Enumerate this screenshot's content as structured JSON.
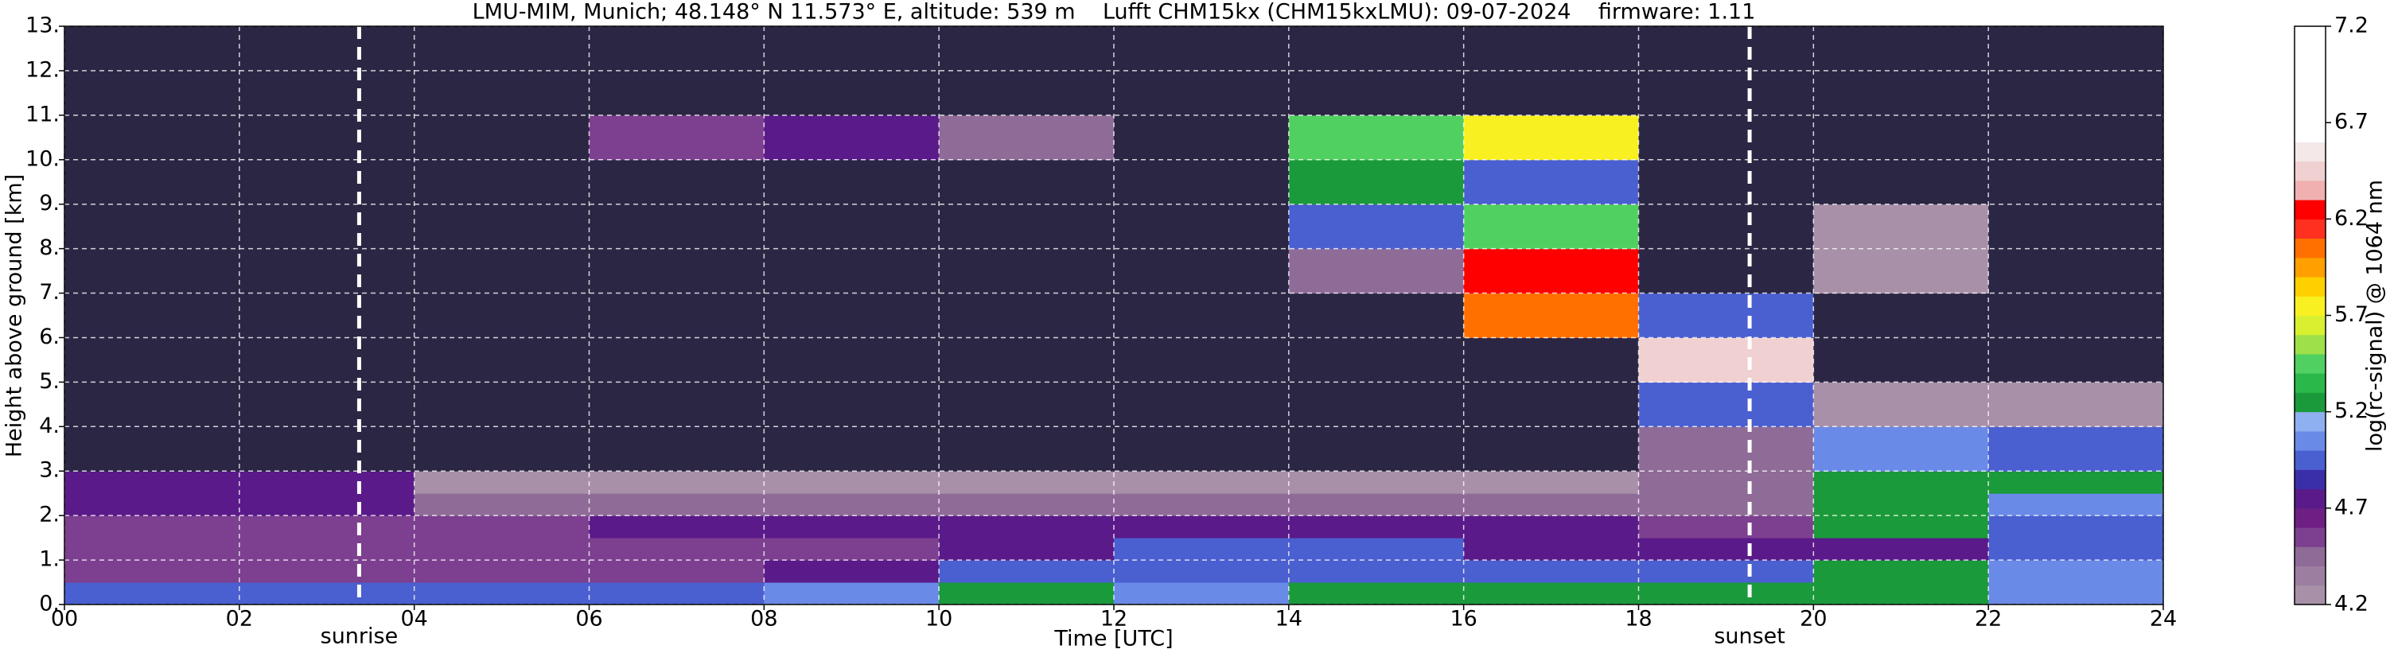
{
  "chart_data": {
    "type": "heatmap",
    "title": "LMU-MIM, Munich; 48.148° N 11.573° E, altitude: 539 m    Lufft CHM15kx (CHM15kxLMU): 09-07-2024    firmware: 1.11",
    "x_label": "Time [UTC]",
    "y_label": "Height above ground [km]",
    "colorbar_label": "log(rc-signal) @ 1064 nm",
    "xlim": [
      0,
      24
    ],
    "xticks": [
      {
        "value": 0,
        "label": "00"
      },
      {
        "value": 2,
        "label": "02"
      },
      {
        "value": 4,
        "label": "04"
      },
      {
        "value": 6,
        "label": "06"
      },
      {
        "value": 8,
        "label": "08"
      },
      10,
      12,
      14,
      16,
      18,
      20,
      22,
      24
    ],
    "ylim": [
      0,
      13
    ],
    "yticks": [
      {
        "value": 0,
        "label": "0."
      },
      {
        "value": 1,
        "label": "1."
      },
      {
        "value": 2,
        "label": "2."
      },
      {
        "value": 3,
        "label": "3."
      },
      {
        "value": 4,
        "label": "4."
      },
      {
        "value": 5,
        "label": "5."
      },
      {
        "value": 6,
        "label": "6."
      },
      {
        "value": 7,
        "label": "7."
      },
      {
        "value": 8,
        "label": "8."
      },
      {
        "value": 9,
        "label": "9."
      },
      {
        "value": 10,
        "label": "10."
      },
      {
        "value": 11,
        "label": "11."
      },
      {
        "value": 12,
        "label": "12."
      },
      {
        "value": 13,
        "label": "13."
      }
    ],
    "grid": true,
    "x_edges": [
      0,
      2,
      4,
      6,
      8,
      10,
      12,
      14,
      16,
      18,
      20,
      22,
      24
    ],
    "y_edges": [
      0,
      0.5,
      1,
      1.5,
      2,
      2.5,
      3,
      4,
      5,
      6,
      7,
      8,
      9,
      10,
      11,
      12,
      13
    ],
    "z": [
      [
        4.95,
        4.9,
        4.9,
        4.9,
        5.1,
        5.2,
        5.1,
        5.3,
        5.3,
        5.3,
        5.2,
        5.1
      ],
      [
        4.6,
        4.6,
        4.6,
        4.6,
        4.7,
        5.0,
        5.0,
        5.0,
        5.0,
        4.9,
        5.2,
        5.1
      ],
      [
        4.6,
        4.6,
        4.6,
        4.6,
        4.6,
        4.8,
        4.9,
        4.9,
        4.8,
        4.7,
        4.7,
        4.9
      ],
      [
        4.6,
        4.6,
        4.6,
        4.7,
        4.7,
        4.8,
        4.8,
        4.8,
        4.7,
        4.6,
        5.2,
        5.0
      ],
      [
        4.8,
        4.8,
        4.5,
        4.5,
        4.4,
        4.4,
        4.4,
        4.4,
        4.4,
        4.4,
        5.3,
        5.1
      ],
      [
        4.7,
        4.7,
        4.3,
        4.3,
        4.3,
        4.3,
        4.3,
        4.3,
        4.3,
        4.4,
        5.3,
        5.2
      ],
      [
        4.0,
        4.0,
        4.0,
        4.0,
        4.0,
        4.0,
        4.0,
        4.0,
        4.0,
        4.4,
        5.1,
        5.0
      ],
      [
        4.0,
        4.0,
        4.0,
        4.0,
        4.0,
        4.0,
        4.0,
        4.0,
        4.0,
        5.0,
        4.2,
        4.2
      ],
      [
        4.0,
        4.0,
        4.0,
        4.0,
        4.0,
        4.0,
        4.0,
        4.0,
        4.0,
        6.4,
        4.1,
        4.0
      ],
      [
        4.0,
        4.0,
        4.0,
        4.0,
        4.0,
        4.0,
        4.0,
        4.0,
        6.0,
        5.0,
        4.1,
        4.0
      ],
      [
        4.0,
        4.0,
        4.0,
        4.0,
        4.0,
        4.0,
        4.0,
        4.5,
        6.2,
        4.1,
        4.2,
        4.0
      ],
      [
        4.0,
        4.0,
        4.0,
        4.0,
        4.0,
        4.0,
        4.0,
        5.0,
        5.5,
        4.0,
        4.3,
        4.0
      ],
      [
        4.0,
        4.0,
        4.0,
        4.0,
        4.0,
        4.0,
        4.0,
        5.2,
        5.0,
        4.0,
        4.1,
        4.0
      ],
      [
        4.0,
        4.0,
        4.0,
        4.6,
        4.8,
        4.5,
        4.1,
        5.5,
        5.8,
        4.0,
        4.0,
        4.0
      ],
      [
        4.0,
        4.0,
        4.0,
        4.0,
        4.0,
        4.0,
        4.0,
        4.0,
        4.0,
        4.0,
        4.0,
        4.0
      ],
      [
        4.0,
        4.0,
        4.0,
        4.0,
        4.0,
        4.0,
        4.0,
        4.0,
        4.0,
        4.0,
        4.0,
        4.0
      ]
    ],
    "clim": [
      4.2,
      7.2
    ],
    "cticks": [
      4.2,
      4.7,
      5.2,
      5.7,
      6.2,
      6.7,
      7.2
    ],
    "under_color": "#2b2644",
    "colors": [
      "#a890a8",
      "#9c7fa0",
      "#8f6b98",
      "#7d3f8f",
      "#6e1f84",
      "#5a1a8a",
      "#3a2fa8",
      "#4a5fd0",
      "#6a8ae8",
      "#8fb0f0",
      "#1a9a3a",
      "#2ab84a",
      "#50d060",
      "#9ee04a",
      "#d8f030",
      "#f8f020",
      "#ffd000",
      "#ffa000",
      "#ff7000",
      "#ff3020",
      "#ff0000",
      "#f0b0b0",
      "#f0d0d0",
      "#f4e8e8",
      "#ffffff",
      "#ffffff",
      "#ffffff",
      "#ffffff",
      "#ffffff",
      "#ffffff"
    ],
    "annotations": [
      {
        "text": "sunrise",
        "x": 3.37
      },
      {
        "text": "sunset",
        "x": 19.27
      }
    ]
  }
}
